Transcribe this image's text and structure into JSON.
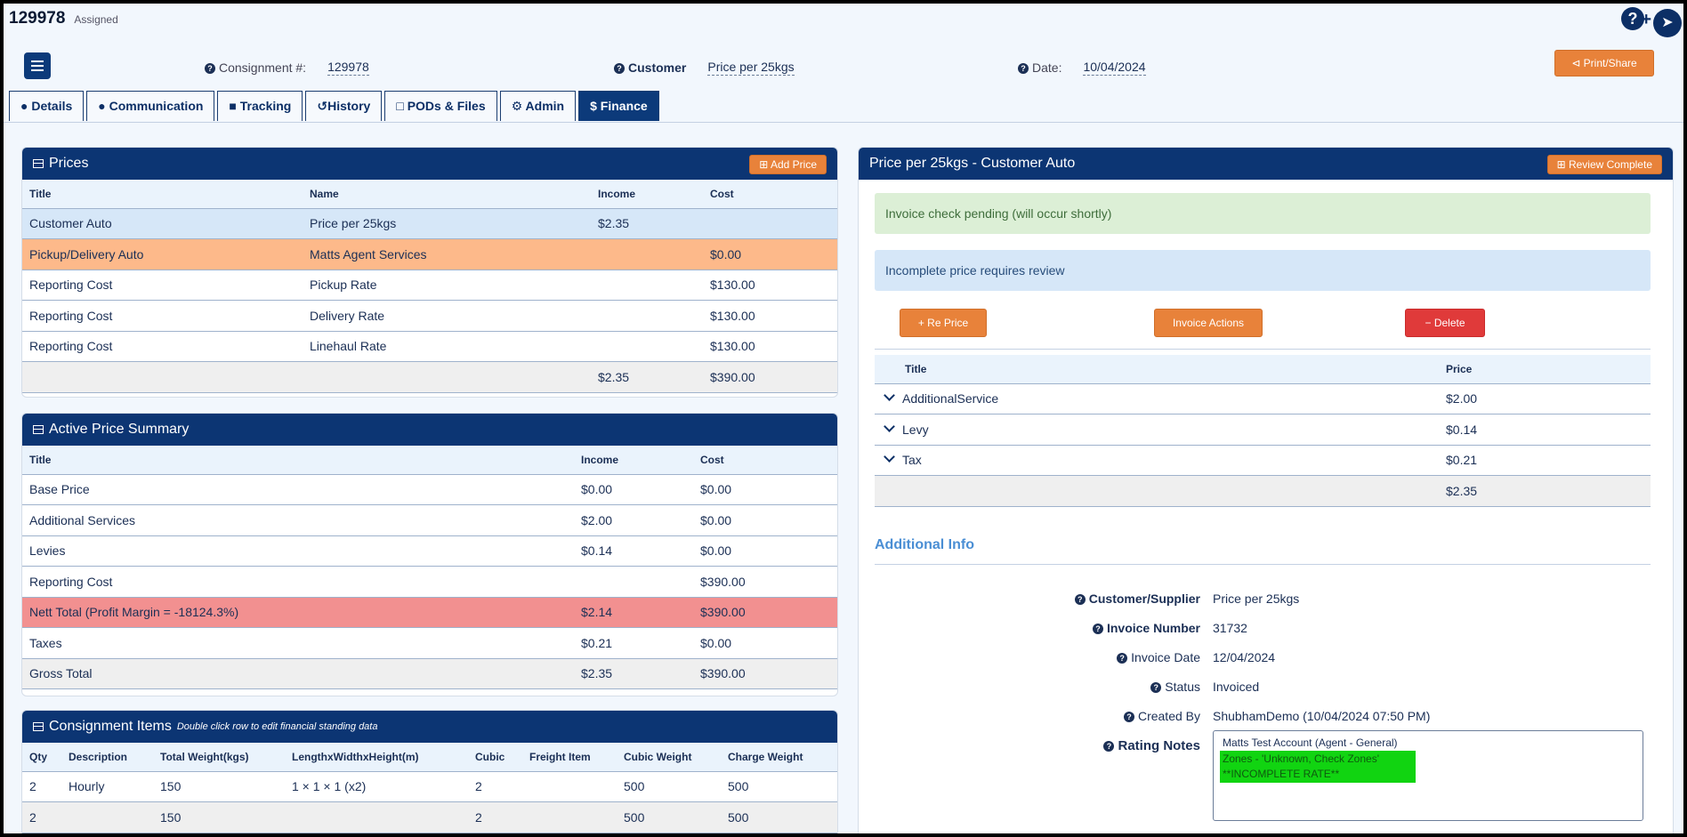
{
  "header": {
    "consignment_id": "129978",
    "status": "Assigned",
    "consignment_label": "Consignment #:",
    "consignment_value": "129978",
    "customer_label": "Customer",
    "customer_value": "Price per 25kgs",
    "date_label": "Date:",
    "date_value": "10/04/2024",
    "print_label": "Print/Share"
  },
  "tabs": [
    {
      "label": "Details",
      "icon": "user-icon"
    },
    {
      "label": "Communication",
      "icon": "comment-icon"
    },
    {
      "label": "Tracking",
      "icon": "truck-icon"
    },
    {
      "label": "History",
      "icon": "history-icon"
    },
    {
      "label": "PODs & Files",
      "icon": "file-icon"
    },
    {
      "label": "Admin",
      "icon": "gear-icon"
    },
    {
      "label": "Finance",
      "icon": "dollar-icon"
    }
  ],
  "prices": {
    "title": "Prices",
    "add_label": "Add Price",
    "columns": [
      "Title",
      "Name",
      "Income",
      "Cost"
    ],
    "rows": [
      [
        "Customer Auto",
        "Price per 25kgs",
        "$2.35",
        ""
      ],
      [
        "Pickup/Delivery Auto",
        "Matts Agent Services",
        "",
        "$0.00"
      ],
      [
        "Reporting Cost",
        "Pickup Rate",
        "",
        "$130.00"
      ],
      [
        "Reporting Cost",
        "Delivery Rate",
        "",
        "$130.00"
      ],
      [
        "Reporting Cost",
        "Linehaul Rate",
        "",
        "$130.00"
      ],
      [
        "",
        "",
        "$2.35",
        "$390.00"
      ]
    ]
  },
  "summary": {
    "title": "Active Price Summary",
    "columns": [
      "Title",
      "Income",
      "Cost"
    ],
    "rows": [
      [
        "Base Price",
        "$0.00",
        "$0.00"
      ],
      [
        "Additional Services",
        "$2.00",
        "$0.00"
      ],
      [
        "Levies",
        "$0.14",
        "$0.00"
      ],
      [
        "Reporting Cost",
        "",
        "$390.00"
      ],
      [
        "Nett Total (Profit Margin = -18124.3%)",
        "$2.14",
        "$390.00"
      ],
      [
        "Taxes",
        "$0.21",
        "$0.00"
      ],
      [
        "Gross Total",
        "$2.35",
        "$390.00"
      ]
    ]
  },
  "items": {
    "title": "Consignment Items",
    "hint": "Double click row to edit financial standing data",
    "columns": [
      "Qty",
      "Description",
      "Total Weight(kgs)",
      "LengthxWidthxHeight(m)",
      "Cubic",
      "Freight Item",
      "Cubic Weight",
      "Charge Weight"
    ],
    "rows": [
      [
        "2",
        "Hourly",
        "150",
        "1 × 1 × 1 (x2)",
        "2",
        "",
        "500",
        "500"
      ],
      [
        "2",
        "",
        "150",
        "",
        "2",
        "",
        "500",
        "500"
      ]
    ]
  },
  "detail": {
    "title": "Price per 25kgs - Customer Auto",
    "review_label": "Review Complete",
    "alert_pending": "Invoice check pending (will occur shortly)",
    "alert_incomplete": "Incomplete price requires review",
    "reprice_label": "Re Price",
    "invoice_actions_label": "Invoice Actions",
    "delete_label": "Delete",
    "columns": [
      "Title",
      "Price"
    ],
    "rows": [
      [
        "AdditionalService",
        "$2.00"
      ],
      [
        "Levy",
        "$0.14"
      ],
      [
        "Tax",
        "$0.21"
      ]
    ],
    "total": "$2.35"
  },
  "additional_info": {
    "title": "Additional Info",
    "fields": [
      {
        "label": "Customer/Supplier",
        "value": "Price per 25kgs",
        "bold": true
      },
      {
        "label": "Invoice Number",
        "value": "31732",
        "bold": true
      },
      {
        "label": "Invoice Date",
        "value": "12/04/2024",
        "bold": false
      },
      {
        "label": "Status",
        "value": "Invoiced",
        "bold": false
      },
      {
        "label": "Created By",
        "value": "ShubhamDemo (10/04/2024 07:50 PM)",
        "bold": false
      }
    ],
    "rating_label": "Rating Notes",
    "rating_line1": "Matts Test Account (Agent - General)",
    "rating_line2": "Zones - 'Unknown, Check Zones'",
    "rating_line3": "**INCOMPLETE RATE**"
  }
}
